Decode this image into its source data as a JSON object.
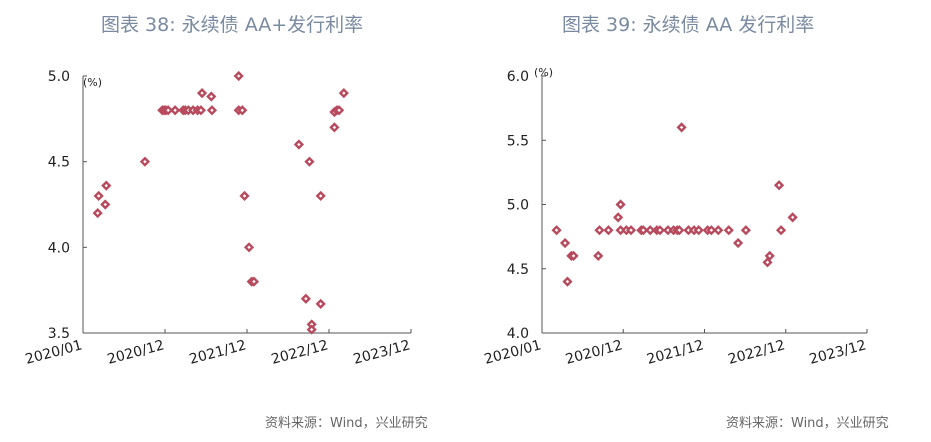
{
  "charts": [
    {
      "title": "图表 38: 永续债 AA+发行利率",
      "unit": "(%)",
      "source": "资料来源：Wind，兴业研究"
    },
    {
      "title": "图表 39: 永续债 AA 发行利率",
      "unit": "(%)",
      "source": "资料来源：Wind，兴业研究"
    }
  ],
  "colors": {
    "marker": "#b84a5e",
    "axis": "#555555",
    "title": "#7a8aa0"
  },
  "chart_data": [
    {
      "type": "scatter",
      "title": "图表 38: 永续债 AA+发行利率",
      "xlabel": "",
      "ylabel": "(%)",
      "xlim": [
        "2020-01",
        "2023-12"
      ],
      "ylim": [
        3.5,
        5.0
      ],
      "x_tick_labels": [
        "2020/01",
        "2020/12",
        "2021/12",
        "2022/12",
        "2023/12"
      ],
      "y_tick_labels": [
        "3.5",
        "4.0",
        "4.5",
        "5.0"
      ],
      "grid": false,
      "points": [
        {
          "x": "2020-03-01",
          "y": 4.2
        },
        {
          "x": "2020-03-05",
          "y": 4.3
        },
        {
          "x": "2020-04-01",
          "y": 4.25
        },
        {
          "x": "2020-04-05",
          "y": 4.36
        },
        {
          "x": "2020-09-10",
          "y": 4.5
        },
        {
          "x": "2020-11-20",
          "y": 4.8
        },
        {
          "x": "2020-11-28",
          "y": 4.8
        },
        {
          "x": "2020-12-05",
          "y": 4.8
        },
        {
          "x": "2020-12-15",
          "y": 4.8
        },
        {
          "x": "2021-01-15",
          "y": 4.8
        },
        {
          "x": "2021-02-20",
          "y": 4.8
        },
        {
          "x": "2021-03-01",
          "y": 4.8
        },
        {
          "x": "2021-03-15",
          "y": 4.8
        },
        {
          "x": "2021-04-05",
          "y": 4.8
        },
        {
          "x": "2021-04-25",
          "y": 4.8
        },
        {
          "x": "2021-05-10",
          "y": 4.8
        },
        {
          "x": "2021-05-15",
          "y": 4.9
        },
        {
          "x": "2021-06-25",
          "y": 4.88
        },
        {
          "x": "2021-06-28",
          "y": 4.8
        },
        {
          "x": "2021-10-25",
          "y": 5.0
        },
        {
          "x": "2021-10-25",
          "y": 4.8
        },
        {
          "x": "2021-11-10",
          "y": 4.8
        },
        {
          "x": "2021-11-20",
          "y": 4.3
        },
        {
          "x": "2021-12-10",
          "y": 4.0
        },
        {
          "x": "2021-12-22",
          "y": 3.8
        },
        {
          "x": "2022-01-01",
          "y": 3.8
        },
        {
          "x": "2022-07-20",
          "y": 4.6
        },
        {
          "x": "2022-08-20",
          "y": 3.7
        },
        {
          "x": "2022-09-05",
          "y": 4.5
        },
        {
          "x": "2022-09-15",
          "y": 3.55
        },
        {
          "x": "2022-09-15",
          "y": 3.52
        },
        {
          "x": "2022-10-25",
          "y": 3.67
        },
        {
          "x": "2022-10-25",
          "y": 4.3
        },
        {
          "x": "2022-12-25",
          "y": 4.7
        },
        {
          "x": "2022-12-25",
          "y": 4.79
        },
        {
          "x": "2023-01-05",
          "y": 4.8
        },
        {
          "x": "2023-01-15",
          "y": 4.8
        },
        {
          "x": "2023-02-05",
          "y": 4.9
        }
      ]
    },
    {
      "type": "scatter",
      "title": "图表 39: 永续债 AA 发行利率",
      "xlabel": "",
      "ylabel": "(%)",
      "xlim": [
        "2020-01",
        "2023-12"
      ],
      "ylim": [
        4.0,
        6.0
      ],
      "x_tick_labels": [
        "2020/01",
        "2020/12",
        "2021/12",
        "2022/12",
        "2023/12"
      ],
      "y_tick_labels": [
        "4.0",
        "4.5",
        "5.0",
        "5.5",
        "6.0"
      ],
      "grid": false,
      "points": [
        {
          "x": "2020-03-01",
          "y": 4.8
        },
        {
          "x": "2020-04-05",
          "y": 4.7
        },
        {
          "x": "2020-04-15",
          "y": 4.4
        },
        {
          "x": "2020-05-01",
          "y": 4.6
        },
        {
          "x": "2020-05-10",
          "y": 4.6
        },
        {
          "x": "2020-08-20",
          "y": 4.6
        },
        {
          "x": "2020-08-25",
          "y": 4.8
        },
        {
          "x": "2020-10-01",
          "y": 4.8
        },
        {
          "x": "2020-11-10",
          "y": 4.9
        },
        {
          "x": "2020-11-20",
          "y": 5.0
        },
        {
          "x": "2020-11-20",
          "y": 4.8
        },
        {
          "x": "2020-12-15",
          "y": 4.8
        },
        {
          "x": "2021-01-05",
          "y": 4.8
        },
        {
          "x": "2021-02-20",
          "y": 4.8
        },
        {
          "x": "2021-03-01",
          "y": 4.8
        },
        {
          "x": "2021-04-01",
          "y": 4.8
        },
        {
          "x": "2021-05-01",
          "y": 4.8
        },
        {
          "x": "2021-05-15",
          "y": 4.8
        },
        {
          "x": "2021-06-20",
          "y": 4.8
        },
        {
          "x": "2021-07-15",
          "y": 4.8
        },
        {
          "x": "2021-08-01",
          "y": 4.8
        },
        {
          "x": "2021-08-10",
          "y": 4.8
        },
        {
          "x": "2021-08-20",
          "y": 5.6
        },
        {
          "x": "2021-09-20",
          "y": 4.8
        },
        {
          "x": "2021-10-15",
          "y": 4.8
        },
        {
          "x": "2021-11-05",
          "y": 4.8
        },
        {
          "x": "2021-12-15",
          "y": 4.8
        },
        {
          "x": "2022-01-01",
          "y": 4.8
        },
        {
          "x": "2022-02-01",
          "y": 4.8
        },
        {
          "x": "2022-03-20",
          "y": 4.8
        },
        {
          "x": "2022-05-01",
          "y": 4.7
        },
        {
          "x": "2022-06-05",
          "y": 4.8
        },
        {
          "x": "2022-09-10",
          "y": 4.55
        },
        {
          "x": "2022-09-20",
          "y": 4.6
        },
        {
          "x": "2022-11-01",
          "y": 5.15
        },
        {
          "x": "2022-11-10",
          "y": 4.8
        },
        {
          "x": "2023-01-01",
          "y": 4.9
        }
      ]
    }
  ]
}
